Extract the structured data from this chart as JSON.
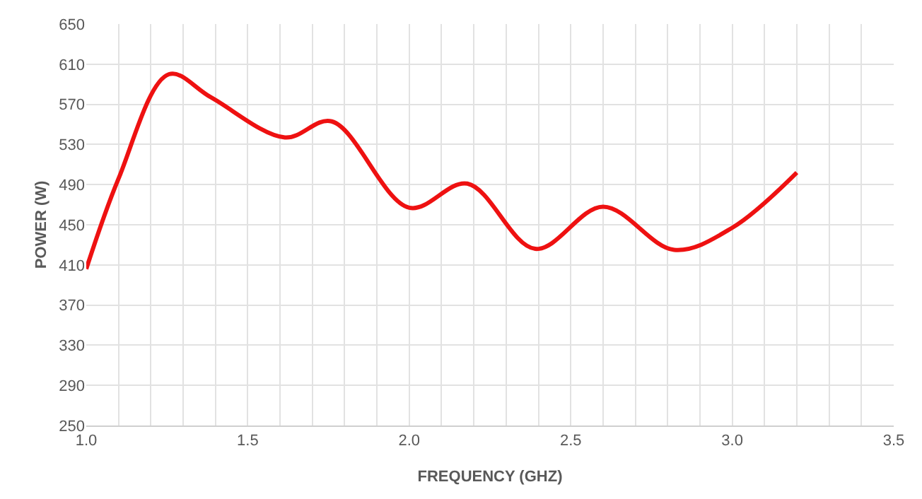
{
  "chart_data": {
    "type": "line",
    "xlabel": "FREQUENCY (GHZ)",
    "ylabel": "POWER (W)",
    "x": [
      1.0,
      1.1,
      1.256,
      1.386,
      1.615,
      1.76,
      2.0,
      2.18,
      2.39,
      2.6,
      2.82,
      3.0,
      3.2
    ],
    "series": [
      {
        "color": "#ee1111",
        "values": [
          406,
          496,
          600,
          577,
          537,
          553,
          467,
          491,
          426,
          468,
          425,
          447,
          502
        ]
      }
    ],
    "xlim": [
      1.0,
      3.5
    ],
    "xticks": [
      {
        "value": 1.0,
        "label": "1.0"
      },
      {
        "value": 1.1,
        "label": null
      },
      {
        "value": 1.2,
        "label": null
      },
      {
        "value": 1.3,
        "label": null
      },
      {
        "value": 1.4,
        "label": null
      },
      {
        "value": 1.5,
        "label": "1.5"
      },
      {
        "value": 1.6,
        "label": null
      },
      {
        "value": 1.7,
        "label": null
      },
      {
        "value": 1.8,
        "label": null
      },
      {
        "value": 1.9,
        "label": null
      },
      {
        "value": 2.0,
        "label": "2.0"
      },
      {
        "value": 2.1,
        "label": null
      },
      {
        "value": 2.2,
        "label": null
      },
      {
        "value": 2.3,
        "label": null
      },
      {
        "value": 2.4,
        "label": null
      },
      {
        "value": 2.5,
        "label": "2.5"
      },
      {
        "value": 2.6,
        "label": null
      },
      {
        "value": 2.7,
        "label": null
      },
      {
        "value": 2.8,
        "label": null
      },
      {
        "value": 2.9,
        "label": null
      },
      {
        "value": 3.0,
        "label": "3.0"
      },
      {
        "value": 3.1,
        "label": null
      },
      {
        "value": 3.2,
        "label": null
      },
      {
        "value": 3.3,
        "label": null
      },
      {
        "value": 3.4,
        "label": null
      },
      {
        "value": 3.5,
        "label": "3.5"
      }
    ],
    "ylim": [
      250,
      650
    ],
    "yticks": [
      250,
      290,
      330,
      370,
      410,
      450,
      490,
      530,
      570,
      610,
      650
    ],
    "grid": true,
    "marker": "none",
    "line_style": "solid"
  }
}
